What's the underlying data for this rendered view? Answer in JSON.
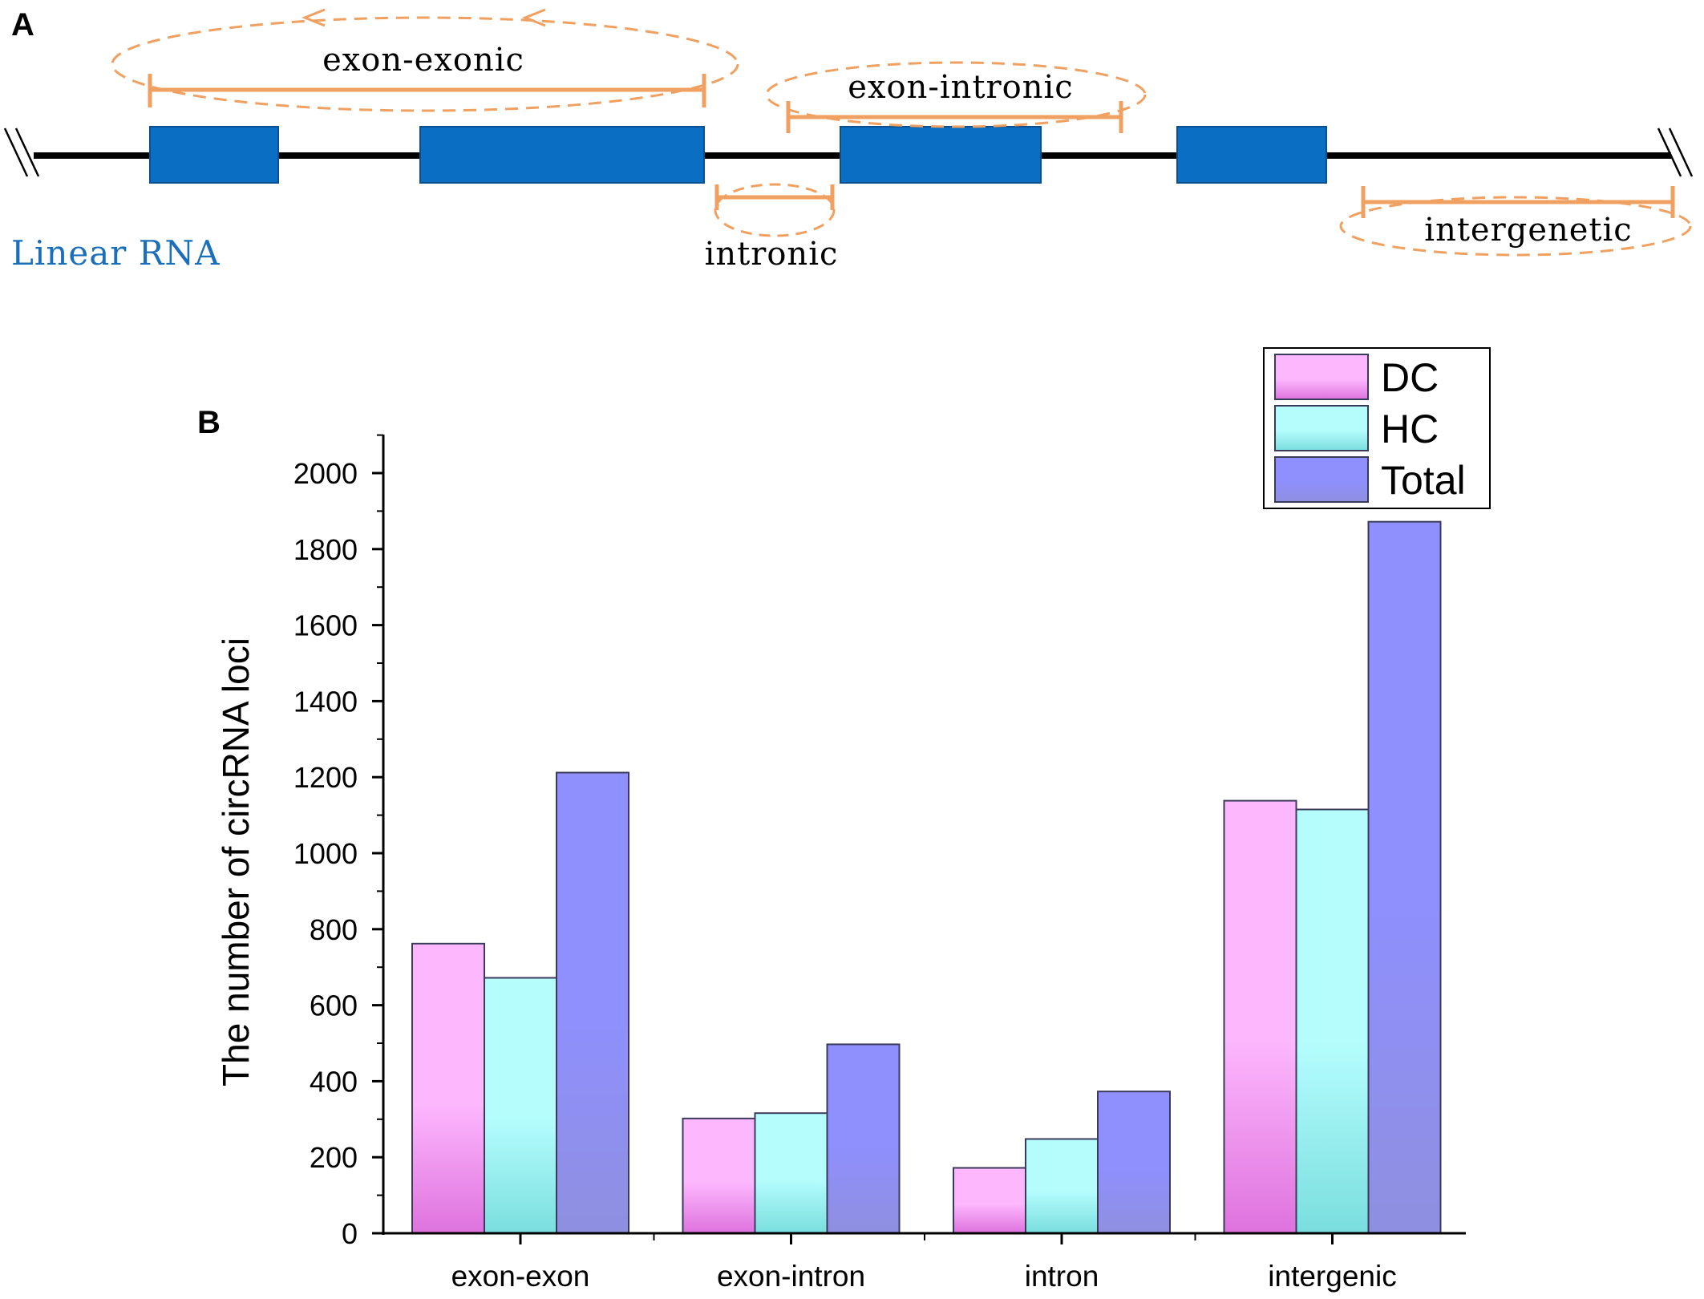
{
  "panel_a": {
    "letter": "A",
    "linear_label": "Linear RNA",
    "regions": {
      "exon_exonic": "exon-exonic",
      "exon_intronic": "exon-intronic",
      "intronic": "intronic",
      "intergenetic": "intergenetic"
    },
    "colors": {
      "exon": "#0a6fc2",
      "bracket": "#f0a060",
      "line": "#000000"
    }
  },
  "panel_b": {
    "letter": "B"
  },
  "chart_data": {
    "type": "bar",
    "title": "",
    "xlabel": "",
    "ylabel": "The number of circRNA loci",
    "categories": [
      "exon-exon",
      "exon-intron",
      "intron",
      "intergenic"
    ],
    "series": [
      {
        "name": "DC",
        "values": [
          762,
          302,
          172,
          1138
        ],
        "color_top": "#fdb8fd",
        "color_bottom": "#de72de"
      },
      {
        "name": "HC",
        "values": [
          672,
          316,
          248,
          1115
        ],
        "color_top": "#b5fdfd",
        "color_bottom": "#7adede"
      },
      {
        "name": "Total",
        "values": [
          1212,
          497,
          373,
          1872
        ],
        "color_top": "#8f8ffd",
        "color_bottom": "#8f8fe0"
      }
    ],
    "ylim": [
      0,
      2100
    ],
    "yticks": [
      "0",
      "200",
      "400",
      "600",
      "800",
      "1000",
      "1200",
      "1400",
      "1600",
      "1800",
      "2000"
    ],
    "legend_position": "top-right",
    "grid": false
  }
}
